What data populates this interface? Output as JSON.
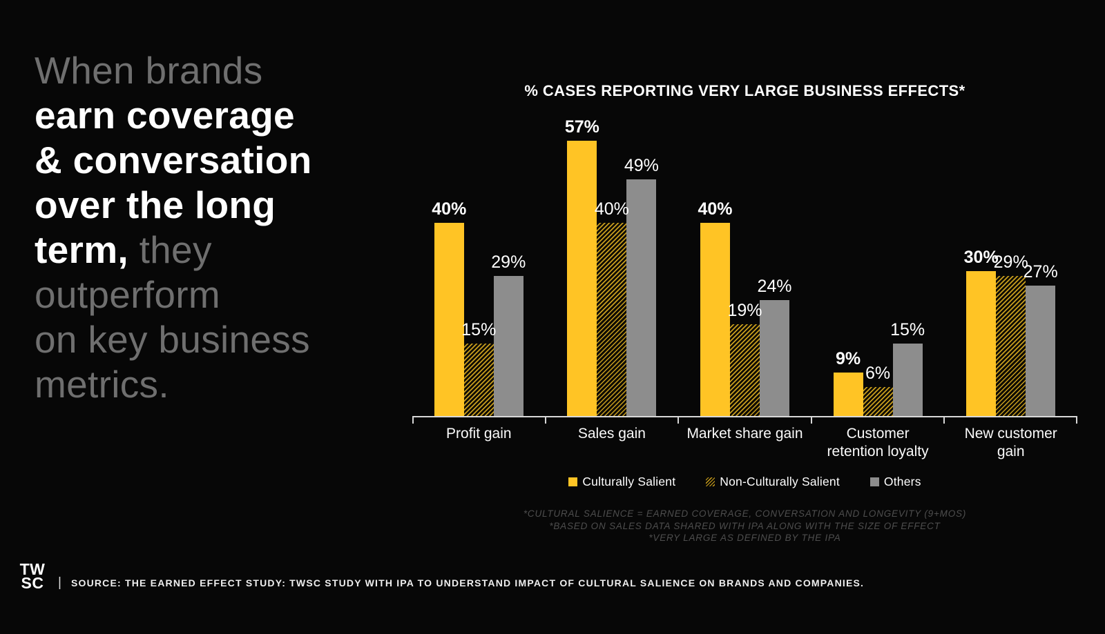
{
  "headline": {
    "lines": [
      [
        {
          "text": "When brands",
          "emphasis": false
        }
      ],
      [
        {
          "text": "earn coverage",
          "emphasis": true
        }
      ],
      [
        {
          "text": "& conversation",
          "emphasis": true
        }
      ],
      [
        {
          "text": "over the long",
          "emphasis": true
        }
      ],
      [
        {
          "text": "term,",
          "emphasis": true
        },
        {
          "text": " they",
          "emphasis": false
        }
      ],
      [
        {
          "text": "outperform",
          "emphasis": false
        }
      ],
      [
        {
          "text": "on key business",
          "emphasis": false
        }
      ],
      [
        {
          "text": "metrics.",
          "emphasis": false
        }
      ]
    ]
  },
  "chart_data": {
    "type": "bar",
    "title": "% CASES REPORTING VERY LARGE BUSINESS EFFECTS*",
    "categories": [
      "Profit gain",
      "Sales gain",
      "Market share gain",
      "Customer retention loyalty",
      "New customer gain"
    ],
    "category_lines": [
      [
        "Profit gain"
      ],
      [
        "Sales gain"
      ],
      [
        "Market share gain"
      ],
      [
        "Customer",
        "retention loyalty"
      ],
      [
        "New customer",
        "gain"
      ]
    ],
    "series": [
      {
        "name": "Culturally Salient",
        "values": [
          40,
          57,
          40,
          9,
          30
        ],
        "color": "#FFC425",
        "pattern": "solid",
        "emphasize_labels": true
      },
      {
        "name": "Non-Culturally Salient",
        "values": [
          15,
          40,
          19,
          6,
          29
        ],
        "color": "#FFC425",
        "pattern": "hatch",
        "emphasize_labels": false
      },
      {
        "name": "Others",
        "values": [
          29,
          49,
          24,
          15,
          27
        ],
        "color": "#8D8D8D",
        "pattern": "solid",
        "emphasize_labels": false
      }
    ],
    "value_suffix": "%",
    "ylim": [
      0,
      60
    ],
    "grid": false,
    "legend_position": "bottom",
    "axis_color": "#D8D8D8"
  },
  "footnotes": {
    "lines": [
      "*CULTURAL SALIENCE = EARNED COVERAGE, CONVERSATION AND LONGEVITY (9+MOS)",
      "*BASED ON SALES DATA SHARED WITH IPA ALONG WITH THE SIZE OF EFFECT",
      "*VERY LARGE AS DEFINED BY THE IPA"
    ]
  },
  "source": {
    "divider": "|",
    "text": "SOURCE: THE EARNED EFFECT STUDY: TWSC STUDY WITH IPA TO UNDERSTAND IMPACT OF CULTURAL SALIENCE ON BRANDS AND COMPANIES."
  },
  "logo": {
    "line1": "TW",
    "line2": "SC"
  }
}
